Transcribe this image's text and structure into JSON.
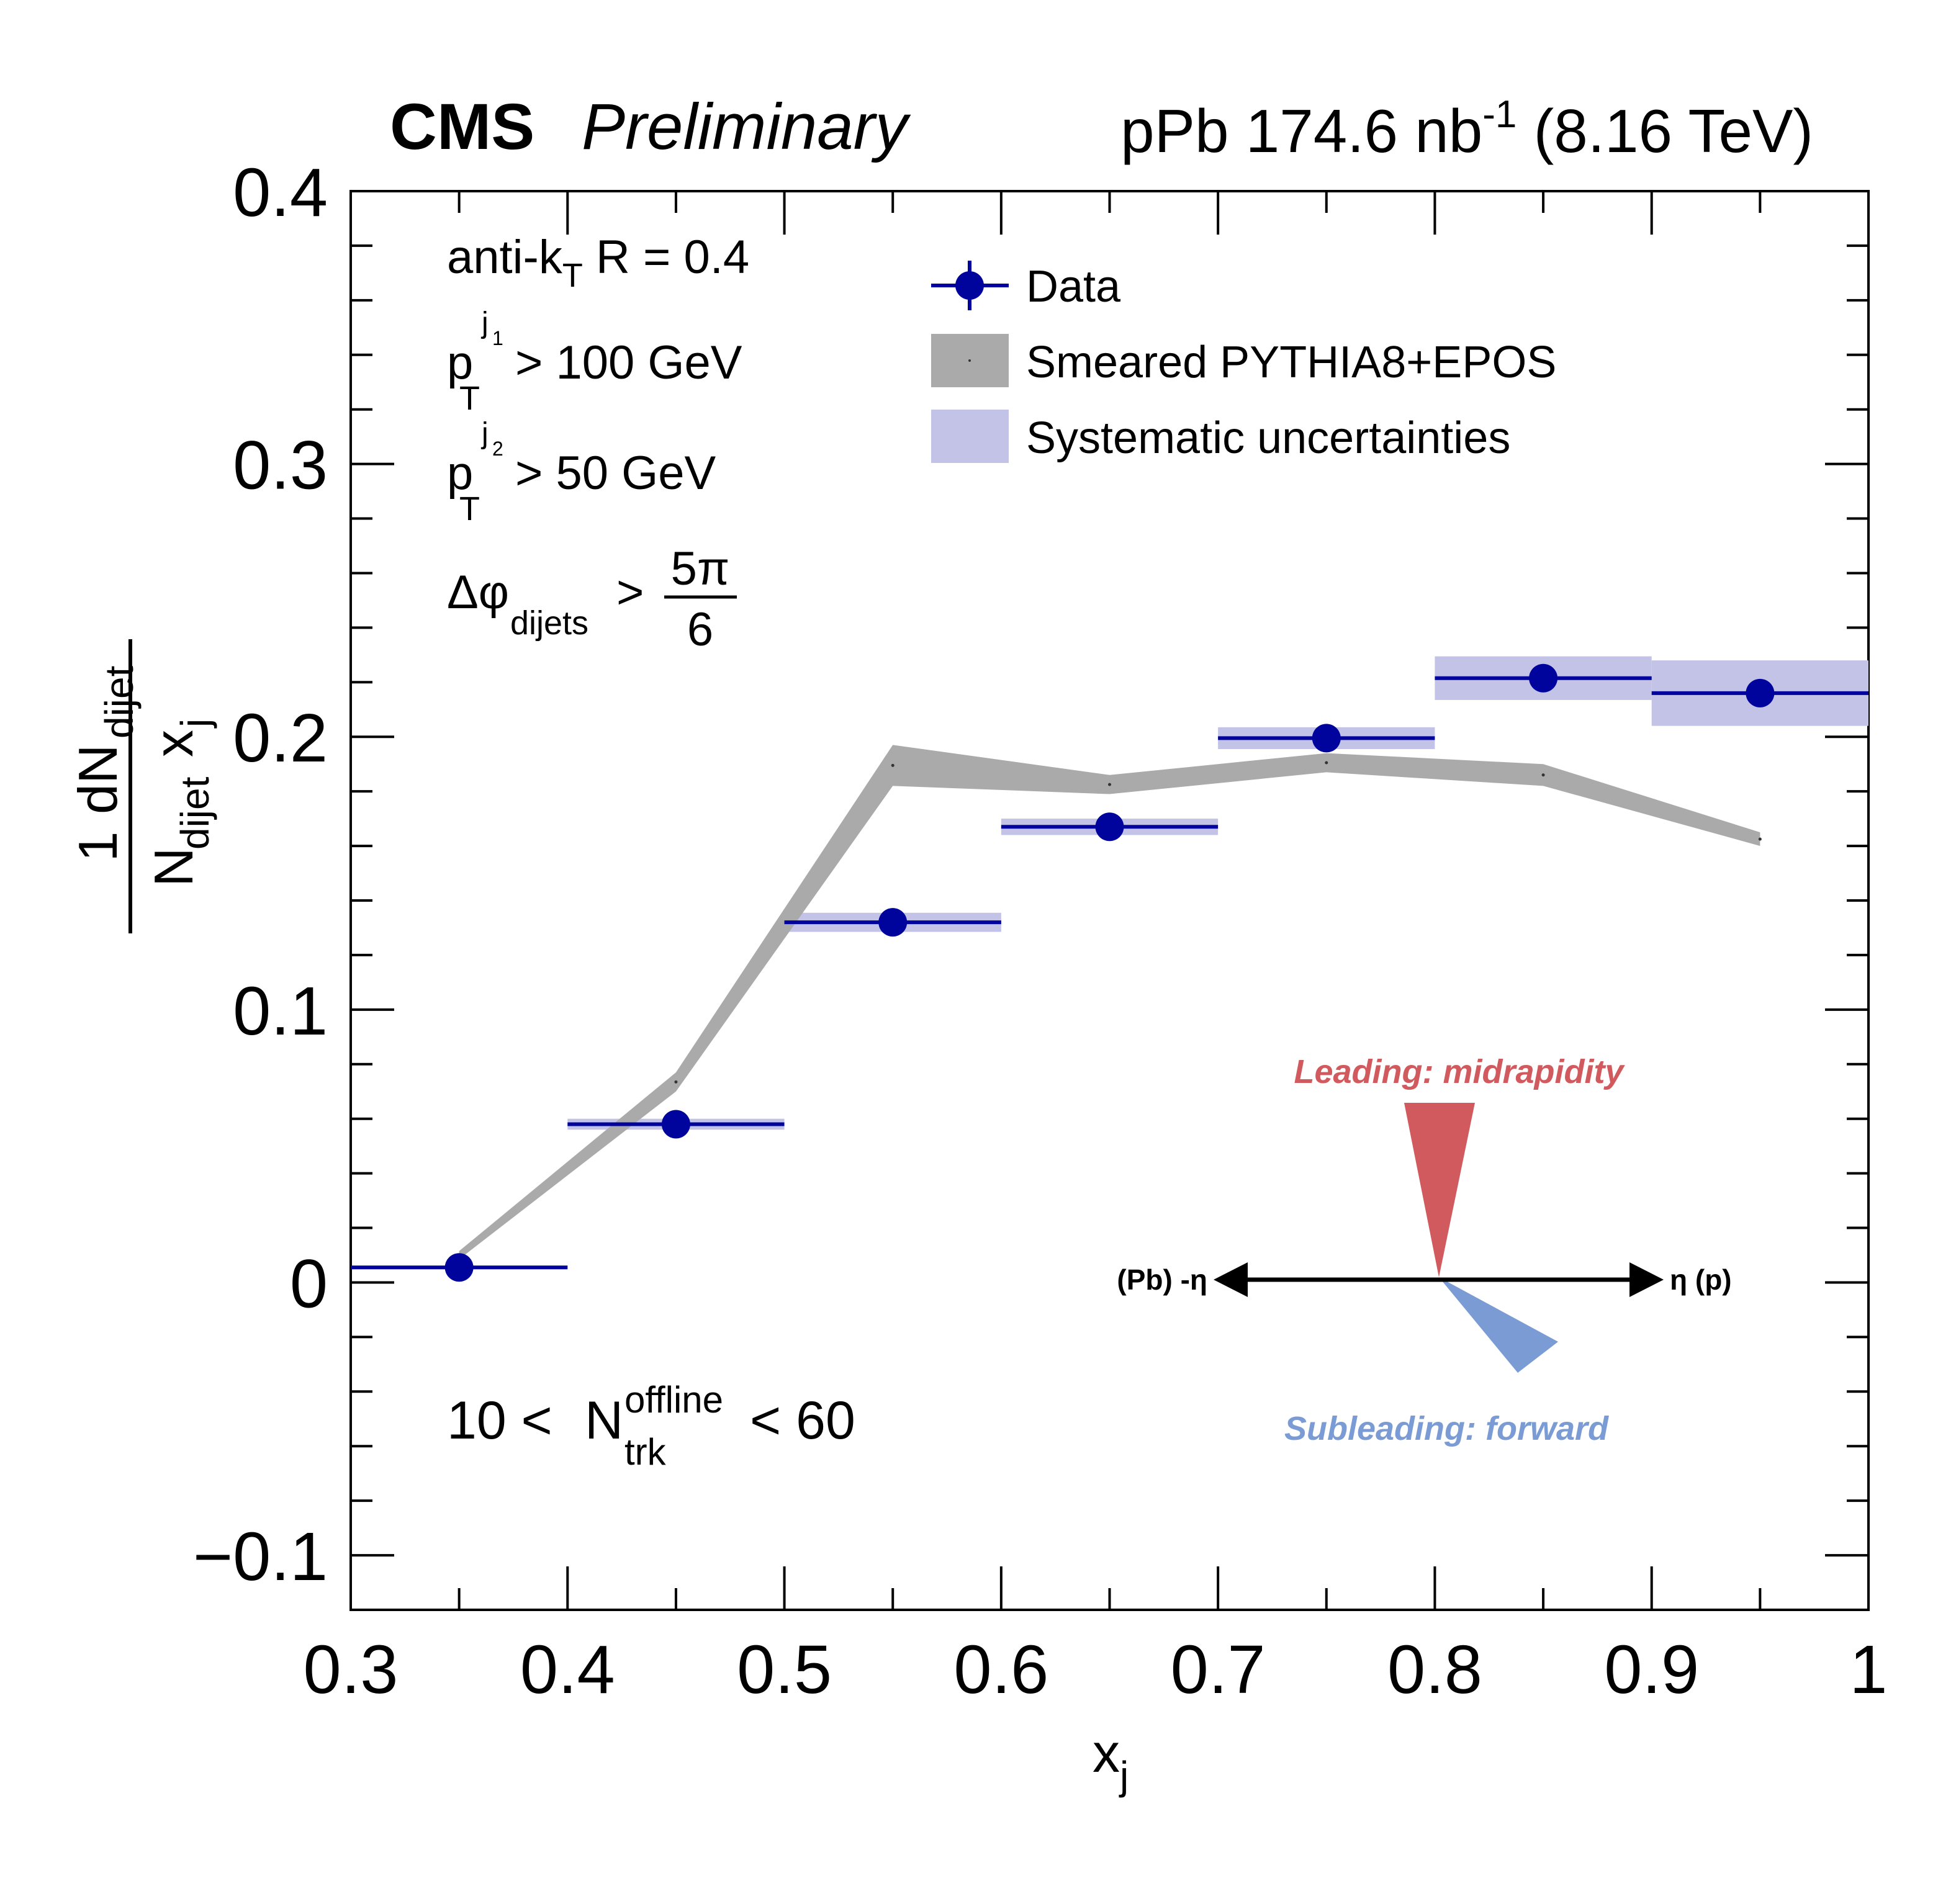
{
  "header": {
    "experiment": "CMS",
    "status": "Preliminary",
    "system": "pPb",
    "lumi": "174.6",
    "lumi_unit": "nb",
    "lumi_exp": "-1",
    "energy": "(8.16 TeV)"
  },
  "cuts": {
    "algo": "anti-k",
    "algo_sub": "T",
    "radius": " R = 0.4",
    "pt": "p",
    "pt_sub": "T",
    "j1_sup": "j",
    "j1_subsup": "1",
    "j1_cut": "> 100 GeV",
    "j2_sup": "j",
    "j2_subsup": "2",
    "j2_cut": "> 50 GeV",
    "dphi": "Δφ",
    "dphi_sub": "dijets",
    "dphi_gt": ">",
    "dphi_num": "5π",
    "dphi_den": "6"
  },
  "mult": {
    "prefix": "10 <",
    "n": "N",
    "sup": "offline",
    "sub": "trk",
    "suffix": "< 60"
  },
  "legend": {
    "data": "Data",
    "mc": "Smeared PYTHIA8+EPOS",
    "syst": "Systematic uncertainties"
  },
  "ylabel": {
    "one": "1",
    "n": "N",
    "n_sub": "dijet",
    "dn": "dN",
    "dn_sub": "dijet",
    "x": "x",
    "x_sub": "j"
  },
  "xlabel": {
    "x": "x",
    "x_sub": "j"
  },
  "inset": {
    "leading": "Leading: midrapidity",
    "subleading": "Subleading: forward",
    "left": "(Pb) -η",
    "right": "η (p)"
  },
  "colors": {
    "data": "#00049c",
    "syst": "#c2c3e6",
    "mc": "#aaaaaa",
    "leading": "#d15a5e",
    "subleading": "#7b9bd4"
  },
  "chart_data": {
    "type": "scatter",
    "xlabel": "x_j",
    "ylabel": "1/N_dijet dN_dijet/x_j",
    "xlim": [
      0.3,
      1.0
    ],
    "ylim": [
      -0.12,
      0.4
    ],
    "xticks": [
      "0.3",
      "0.4",
      "0.5",
      "0.6",
      "0.7",
      "0.8",
      "0.9",
      "1"
    ],
    "yticks": [
      "−0.1",
      "0",
      "0.1",
      "0.2",
      "0.3",
      "0.4"
    ],
    "yticks_values": [
      -0.1,
      0,
      0.1,
      0.2,
      0.3,
      0.4
    ],
    "legend_position": "top-right",
    "series": [
      {
        "name": "Data",
        "x": [
          0.35,
          0.45,
          0.55,
          0.65,
          0.75,
          0.85,
          0.95
        ],
        "x_err": [
          0.05,
          0.05,
          0.05,
          0.05,
          0.05,
          0.05,
          0.05
        ],
        "y": [
          0.0055,
          0.058,
          0.132,
          0.167,
          0.1995,
          0.2215,
          0.216
        ],
        "stat_err": [
          0.002,
          0.002,
          0.002,
          0.002,
          0.003,
          0.003,
          0.003
        ],
        "syst_err": [
          0.0005,
          0.002,
          0.0035,
          0.003,
          0.004,
          0.008,
          0.012
        ]
      },
      {
        "name": "Smeared PYTHIA8+EPOS",
        "x": [
          0.35,
          0.45,
          0.55,
          0.65,
          0.75,
          0.85,
          0.95
        ],
        "y_low": [
          0.0085,
          0.07,
          0.182,
          0.179,
          0.187,
          0.182,
          0.16
        ],
        "y_high": [
          0.0115,
          0.077,
          0.197,
          0.186,
          0.194,
          0.19,
          0.165
        ]
      }
    ]
  }
}
